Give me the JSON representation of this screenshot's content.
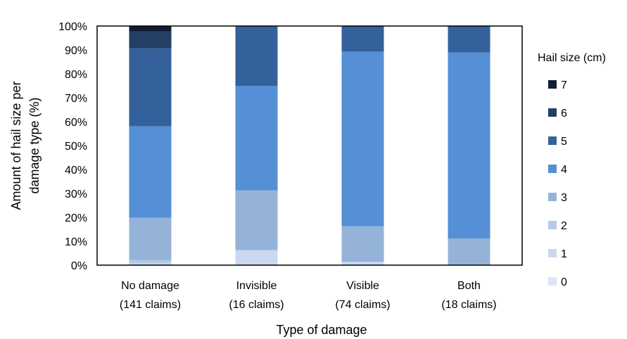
{
  "chart_data": {
    "type": "bar",
    "stacked": true,
    "percent": true,
    "xlabel": "Type of damage",
    "ylabel_lines": [
      "Amount of hail size per",
      "damage type (%)"
    ],
    "ylim": [
      0,
      100
    ],
    "yticks": [
      "0%",
      "10%",
      "20%",
      "30%",
      "40%",
      "50%",
      "60%",
      "70%",
      "80%",
      "90%",
      "100%"
    ],
    "categories": [
      [
        "No damage",
        "(141 claims)"
      ],
      [
        "Invisible",
        "(16 claims)"
      ],
      [
        "Visible",
        "(74 claims)"
      ],
      [
        "Both",
        "(18 claims)"
      ]
    ],
    "legend_title": "Hail size (cm)",
    "legend_position": "right",
    "series": [
      {
        "name": "0",
        "color": "#dbe6f4",
        "values": [
          0.0,
          0.0,
          0.0,
          0.0
        ]
      },
      {
        "name": "1",
        "color": "#c9d8ee",
        "values": [
          0.7,
          6.3,
          1.4,
          0.0
        ]
      },
      {
        "name": "2",
        "color": "#b4cae6",
        "values": [
          1.4,
          0.0,
          0.0,
          0.0
        ]
      },
      {
        "name": "3",
        "color": "#95b3d8",
        "values": [
          17.7,
          25.0,
          14.9,
          11.1
        ]
      },
      {
        "name": "4",
        "color": "#558fd6",
        "values": [
          38.3,
          43.7,
          73.0,
          77.8
        ]
      },
      {
        "name": "5",
        "color": "#34619b",
        "values": [
          32.6,
          25.0,
          10.7,
          11.1
        ]
      },
      {
        "name": "6",
        "color": "#243f63",
        "values": [
          7.1,
          0.0,
          0.0,
          0.0
        ]
      },
      {
        "name": "7",
        "color": "#111d33",
        "values": [
          2.2,
          0.0,
          0.0,
          0.0
        ]
      }
    ]
  }
}
